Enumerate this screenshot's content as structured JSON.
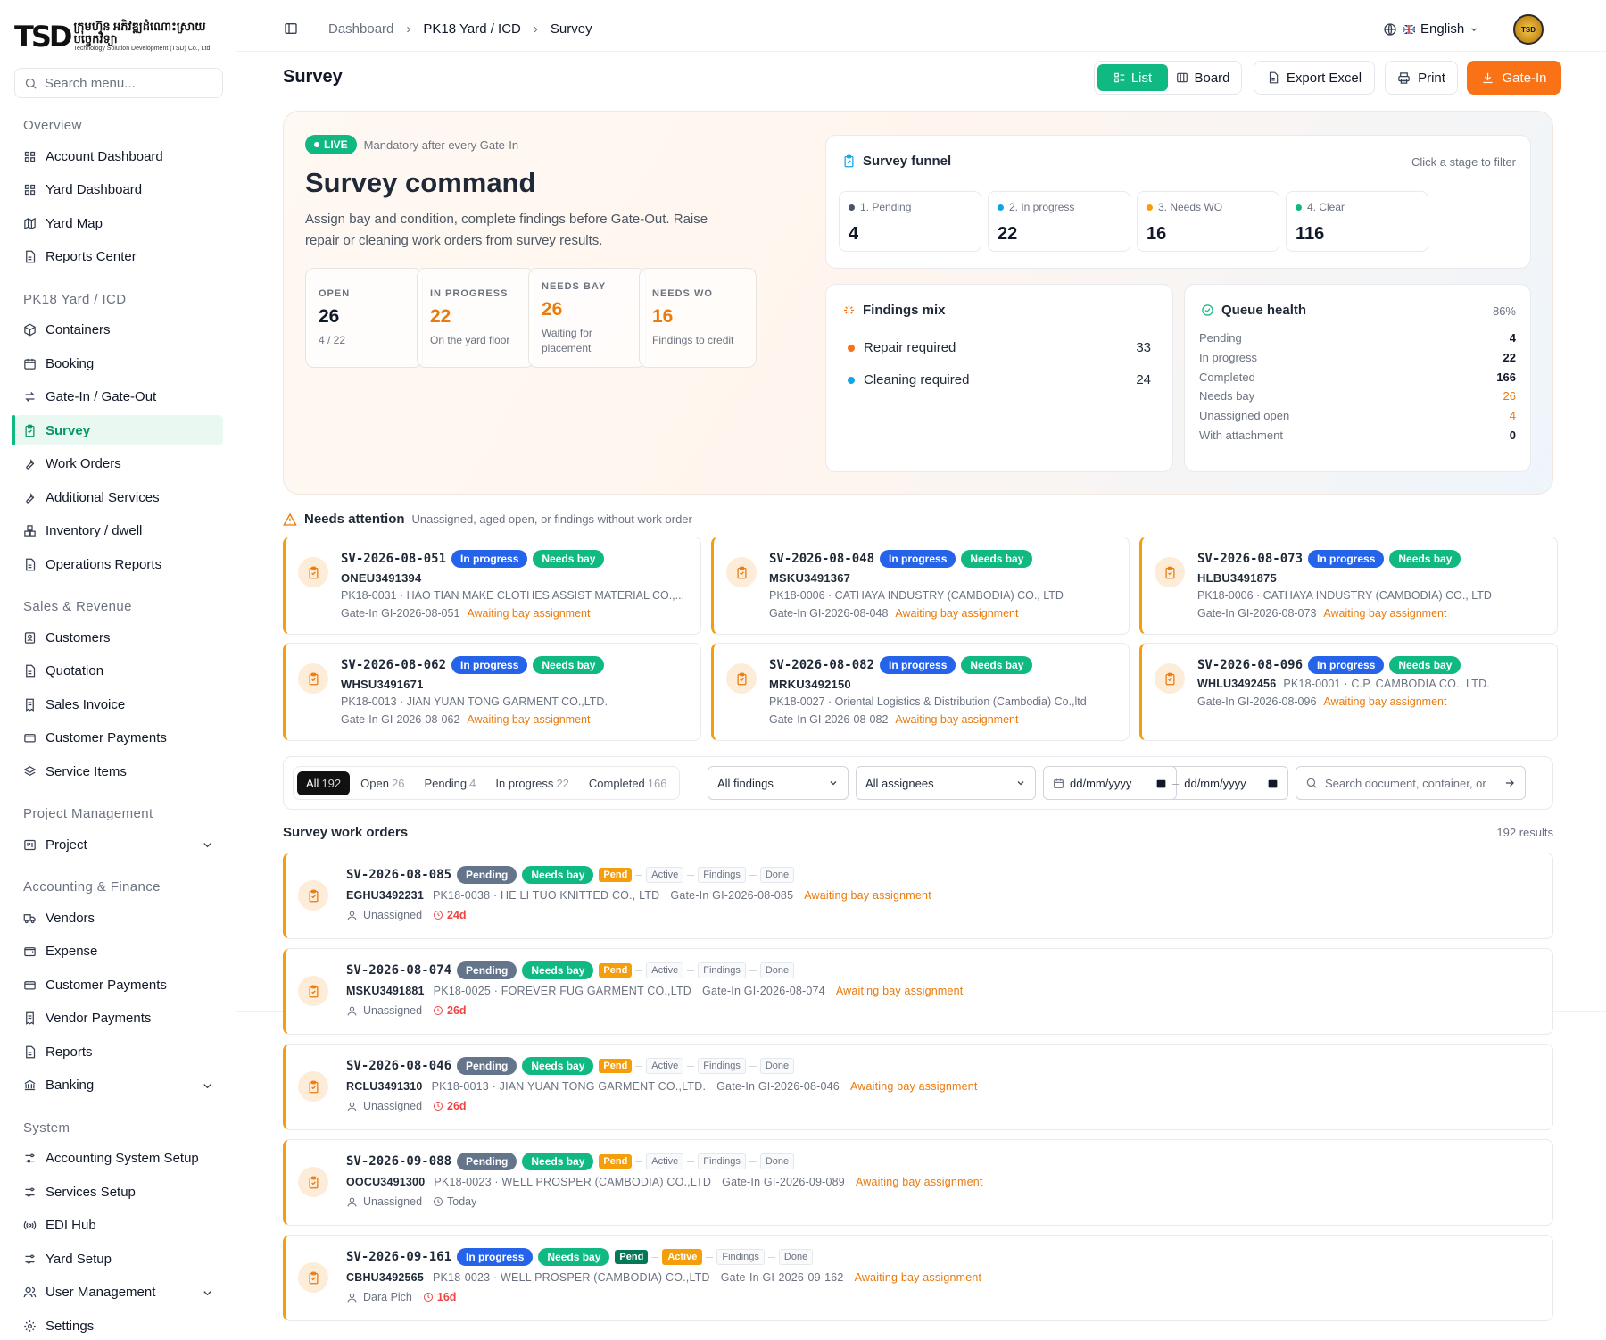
{
  "brand": {
    "mark": "TSD",
    "line1": "ក្រុមហ៊ុន អភិវឌ្ឍដំណោះស្រាយបច្ចេកវិទ្យា",
    "line2": "Technology Solution Development (TSD) Co., Ltd."
  },
  "sidebar": {
    "search_placeholder": "Search menu...",
    "sections": [
      {
        "title": "Overview",
        "items": [
          {
            "label": "Account Dashboard",
            "icon": "grid-icon"
          },
          {
            "label": "Yard Dashboard",
            "icon": "grid-icon"
          },
          {
            "label": "Yard Map",
            "icon": "map-icon"
          },
          {
            "label": "Reports Center",
            "icon": "file-icon"
          }
        ]
      },
      {
        "title": "PK18 Yard / ICD",
        "items": [
          {
            "label": "Containers",
            "icon": "box-icon"
          },
          {
            "label": "Booking",
            "icon": "calendar-icon"
          },
          {
            "label": "Gate-In / Gate-Out",
            "icon": "swap-icon"
          },
          {
            "label": "Survey",
            "icon": "clipboard-check-icon",
            "active": true
          },
          {
            "label": "Work Orders",
            "icon": "wrench-icon"
          },
          {
            "label": "Additional Services",
            "icon": "wrench-icon"
          },
          {
            "label": "Inventory / dwell",
            "icon": "boxes-icon"
          },
          {
            "label": "Operations Reports",
            "icon": "file-icon"
          }
        ]
      },
      {
        "title": "Sales & Revenue",
        "items": [
          {
            "label": "Customers",
            "icon": "contact-icon"
          },
          {
            "label": "Quotation",
            "icon": "file-icon"
          },
          {
            "label": "Sales Invoice",
            "icon": "receipt-icon"
          },
          {
            "label": "Customer Payments",
            "icon": "card-icon"
          },
          {
            "label": "Service Items",
            "icon": "layers-icon"
          }
        ]
      },
      {
        "title": "Project Management",
        "items": [
          {
            "label": "Project",
            "icon": "kanban-icon",
            "chevron": true
          }
        ]
      },
      {
        "title": "Accounting & Finance",
        "items": [
          {
            "label": "Vendors",
            "icon": "truck-icon"
          },
          {
            "label": "Expense",
            "icon": "wallet-icon"
          },
          {
            "label": "Customer Payments",
            "icon": "card-icon"
          },
          {
            "label": "Vendor Payments",
            "icon": "receipt-icon"
          },
          {
            "label": "Reports",
            "icon": "file-icon"
          },
          {
            "label": "Banking",
            "icon": "bank-icon",
            "chevron": true
          }
        ]
      },
      {
        "title": "System",
        "items": [
          {
            "label": "Accounting System Setup",
            "icon": "sliders-icon"
          },
          {
            "label": "Services Setup",
            "icon": "sliders-icon"
          },
          {
            "label": "EDI Hub",
            "icon": "radio-icon"
          },
          {
            "label": "Yard Setup",
            "icon": "sliders-icon"
          },
          {
            "label": "User Management",
            "icon": "users-icon",
            "chevron": true
          },
          {
            "label": "Settings",
            "icon": "gear-icon"
          }
        ]
      }
    ]
  },
  "topbar": {
    "crumbs": [
      "Dashboard",
      "PK18 Yard / ICD",
      "Survey"
    ],
    "language": "English",
    "avatar_text": "TSD"
  },
  "page": {
    "title": "Survey"
  },
  "actions": {
    "list": "List",
    "board": "Board",
    "export": "Export Excel",
    "print": "Print",
    "gate_in": "Gate-In"
  },
  "hero": {
    "live": "LIVE",
    "live_note": "Mandatory after every Gate-In",
    "title": "Survey command",
    "desc": "Assign bay and condition, complete findings before Gate-Out. Raise repair or cleaning work orders from survey results.",
    "kpis": [
      {
        "label": "OPEN",
        "value": "26",
        "sub": "4 / 22"
      },
      {
        "label": "IN PROGRESS",
        "value": "22",
        "sub": "On the yard floor"
      },
      {
        "label": "NEEDS BAY",
        "value": "26",
        "sub": "Waiting for placement"
      },
      {
        "label": "NEEDS WO",
        "value": "16",
        "sub": "Findings to credit"
      }
    ]
  },
  "funnel": {
    "title": "Survey funnel",
    "hint": "Click a stage to filter",
    "stages": [
      {
        "label": "1. Pending",
        "value": "4",
        "color": "#475569"
      },
      {
        "label": "2. In progress",
        "value": "22",
        "color": "#0ea5e9"
      },
      {
        "label": "3. Needs WO",
        "value": "16",
        "color": "#f59e0b"
      },
      {
        "label": "4. Clear",
        "value": "116",
        "color": "#10b981"
      }
    ]
  },
  "findings": {
    "title": "Findings mix",
    "rows": [
      {
        "label": "Repair required",
        "value": "33",
        "color": "#f97316"
      },
      {
        "label": "Cleaning required",
        "value": "24",
        "color": "#0ea5e9"
      }
    ]
  },
  "queue": {
    "title": "Queue health",
    "pct": "86%",
    "rows": [
      {
        "label": "Pending",
        "value": "4"
      },
      {
        "label": "In progress",
        "value": "22"
      },
      {
        "label": "Completed",
        "value": "166"
      },
      {
        "label": "Needs bay",
        "value": "26",
        "warn": true
      },
      {
        "label": "Unassigned open",
        "value": "4",
        "warn": true
      },
      {
        "label": "With attachment",
        "value": "0"
      }
    ]
  },
  "attention": {
    "title": "Needs attention",
    "sub": "Unassigned, aged open, or findings without work order",
    "cards": [
      {
        "id": "SV-2026-08-051",
        "status": "In progress",
        "tag": "Needs bay",
        "container": "ONEU3491394",
        "party": "PK18-0031 · HAO TIAN MAKE CLOTHES ASSIST MATERIAL CO.,...",
        "gate": "Gate-In GI-2026-08-051",
        "note": "Awaiting bay assignment"
      },
      {
        "id": "SV-2026-08-048",
        "status": "In progress",
        "tag": "Needs bay",
        "container": "MSKU3491367",
        "party": "PK18-0006 · CATHAYA INDUSTRY (CAMBODIA) CO., LTD",
        "gate": "Gate-In GI-2026-08-048",
        "note": "Awaiting bay assignment"
      },
      {
        "id": "SV-2026-08-073",
        "status": "In progress",
        "tag": "Needs bay",
        "container": "HLBU3491875",
        "party": "PK18-0006 · CATHAYA INDUSTRY (CAMBODIA) CO., LTD",
        "gate": "Gate-In GI-2026-08-073",
        "note": "Awaiting bay assignment"
      },
      {
        "id": "SV-2026-08-062",
        "status": "In progress",
        "tag": "Needs bay",
        "container": "WHSU3491671",
        "party": "PK18-0013 · JIAN YUAN TONG GARMENT CO.,LTD.",
        "gate": "Gate-In GI-2026-08-062",
        "note": "Awaiting bay assignment"
      },
      {
        "id": "SV-2026-08-082",
        "status": "In progress",
        "tag": "Needs bay",
        "container": "MRKU3492150",
        "party": "PK18-0027 · Oriental Logistics & Distribution (Cambodia) Co.,ltd",
        "gate": "Gate-In GI-2026-08-082",
        "note": "Awaiting bay assignment"
      },
      {
        "id": "SV-2026-08-096",
        "status": "In progress",
        "tag": "Needs bay",
        "container": "WHLU3492456",
        "party": "PK18-0001 · C.P. CAMBODIA CO., LTD.",
        "gate": "Gate-In GI-2026-08-096",
        "note": "Awaiting bay assignment"
      }
    ]
  },
  "filters": {
    "tabs": [
      {
        "label": "All",
        "count": "192"
      },
      {
        "label": "Open",
        "count": "26"
      },
      {
        "label": "Pending",
        "count": "4"
      },
      {
        "label": "In progress",
        "count": "22"
      },
      {
        "label": "Completed",
        "count": "166"
      }
    ],
    "findings": "All findings",
    "assignees": "All assignees",
    "date_from": "dd/mm/yyyy",
    "date_to": "dd/mm/yyyy",
    "search_placeholder": "Search document, container, or"
  },
  "list": {
    "title": "Survey work orders",
    "count": "192 results",
    "rows": [
      {
        "id": "SV-2026-08-085",
        "status": "Pending",
        "tag": "Needs bay",
        "flag": "Pend",
        "steps": [
          "Active",
          "Findings",
          "Done"
        ],
        "active_step": -1,
        "container": "EGHU3492231",
        "party": "PK18-0038 · HE LI TUO KNITTED CO., LTD",
        "gate": "Gate-In GI-2026-08-085",
        "note": "Awaiting bay assignment",
        "assignee": "Unassigned",
        "age": "24d"
      },
      {
        "id": "SV-2026-08-074",
        "status": "Pending",
        "tag": "Needs bay",
        "flag": "Pend",
        "steps": [
          "Active",
          "Findings",
          "Done"
        ],
        "active_step": -1,
        "container": "MSKU3491881",
        "party": "PK18-0025 · FOREVER FUG GARMENT CO.,LTD",
        "gate": "Gate-In GI-2026-08-074",
        "note": "Awaiting bay assignment",
        "assignee": "Unassigned",
        "age": "26d"
      },
      {
        "id": "SV-2026-08-046",
        "status": "Pending",
        "tag": "Needs bay",
        "flag": "Pend",
        "steps": [
          "Active",
          "Findings",
          "Done"
        ],
        "active_step": -1,
        "container": "RCLU3491310",
        "party": "PK18-0013 · JIAN YUAN TONG GARMENT CO.,LTD.",
        "gate": "Gate-In GI-2026-08-046",
        "note": "Awaiting bay assignment",
        "assignee": "Unassigned",
        "age": "26d"
      },
      {
        "id": "SV-2026-09-088",
        "status": "Pending",
        "tag": "Needs bay",
        "flag": "Pend",
        "steps": [
          "Active",
          "Findings",
          "Done"
        ],
        "active_step": -1,
        "container": "OOCU3491300",
        "party": "PK18-0023 · WELL PROSPER (CAMBODIA) CO.,LTD",
        "gate": "Gate-In GI-2026-09-089",
        "note": "Awaiting bay assignment",
        "assignee": "Unassigned",
        "age": "Today"
      },
      {
        "id": "SV-2026-09-161",
        "status": "In progress",
        "tag": "Needs bay",
        "flag": "Pend",
        "steps": [
          "Active",
          "Findings",
          "Done"
        ],
        "active_step": 0,
        "container": "CBHU3492565",
        "party": "PK18-0023 · WELL PROSPER (CAMBODIA) CO.,LTD",
        "gate": "Gate-In GI-2026-09-162",
        "note": "Awaiting bay assignment",
        "assignee": "Dara Pich",
        "age": "16d"
      }
    ]
  }
}
